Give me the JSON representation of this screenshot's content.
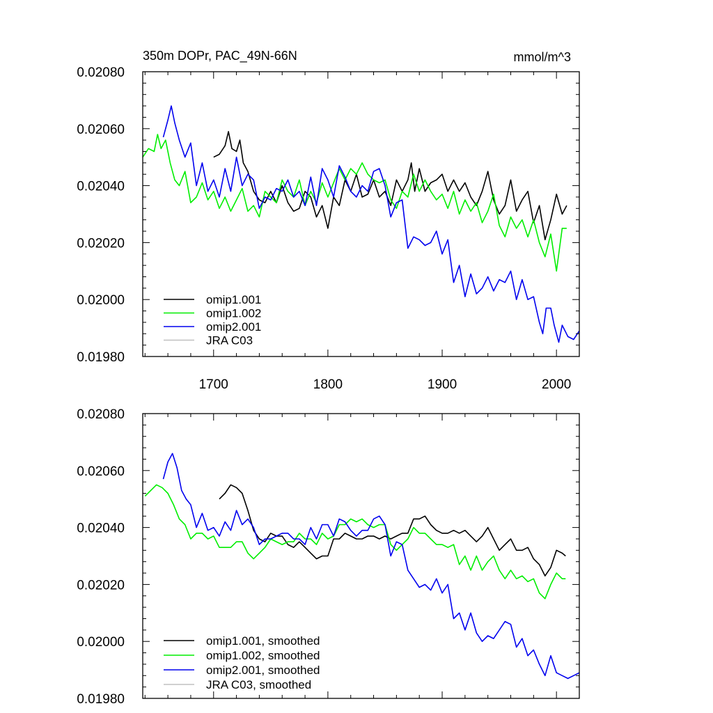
{
  "chart_data": [
    {
      "type": "line",
      "title": "350m DOPr, PAC_49N-66N",
      "units": "mmol/m^3",
      "xlabel": "",
      "ylabel": "",
      "xlim": [
        1638,
        2020
      ],
      "ylim": [
        0.0198,
        0.0208
      ],
      "xticks": [
        "1700",
        "1800",
        "1900",
        "2000"
      ],
      "yticks": [
        "0.01980",
        "0.02000",
        "0.02020",
        "0.02040",
        "0.02060",
        "0.02080"
      ],
      "legend": "bottom-left",
      "series": [
        {
          "name": "omip1.001",
          "color": "#000000",
          "x": [
            1700,
            1705,
            1710,
            1713,
            1716,
            1720,
            1723,
            1726,
            1730,
            1735,
            1740,
            1745,
            1750,
            1755,
            1760,
            1765,
            1770,
            1775,
            1780,
            1785,
            1790,
            1795,
            1800,
            1805,
            1810,
            1815,
            1820,
            1825,
            1830,
            1835,
            1840,
            1845,
            1850,
            1855,
            1860,
            1865,
            1870,
            1873,
            1876,
            1880,
            1885,
            1890,
            1895,
            1900,
            1905,
            1910,
            1915,
            1920,
            1925,
            1930,
            1935,
            1940,
            1945,
            1950,
            1955,
            1960,
            1965,
            1970,
            1975,
            1980,
            1985,
            1990,
            1995,
            2000,
            2005,
            2009
          ],
          "values": [
            0.0205,
            0.02051,
            0.02054,
            0.02059,
            0.02053,
            0.02052,
            0.02056,
            0.02048,
            0.02045,
            0.02038,
            0.02035,
            0.02034,
            0.02038,
            0.02034,
            0.0204,
            0.02034,
            0.02031,
            0.02032,
            0.02038,
            0.02036,
            0.02029,
            0.02033,
            0.02025,
            0.02036,
            0.02033,
            0.02042,
            0.02038,
            0.02044,
            0.02036,
            0.02037,
            0.02042,
            0.02036,
            0.02038,
            0.02033,
            0.02042,
            0.02038,
            0.02042,
            0.02048,
            0.02038,
            0.02046,
            0.02038,
            0.02041,
            0.02042,
            0.02044,
            0.02038,
            0.02042,
            0.02038,
            0.02041,
            0.02036,
            0.02033,
            0.02038,
            0.02045,
            0.02035,
            0.0203,
            0.02033,
            0.02042,
            0.02031,
            0.02035,
            0.02038,
            0.02027,
            0.02033,
            0.02021,
            0.02028,
            0.02037,
            0.0203,
            0.02033
          ]
        },
        {
          "name": "omip1.002",
          "color": "#00ee00",
          "x": [
            1638,
            1643,
            1648,
            1651,
            1654,
            1658,
            1662,
            1666,
            1670,
            1675,
            1680,
            1685,
            1690,
            1695,
            1700,
            1705,
            1710,
            1715,
            1720,
            1725,
            1730,
            1735,
            1740,
            1745,
            1750,
            1755,
            1760,
            1765,
            1770,
            1775,
            1780,
            1785,
            1790,
            1795,
            1800,
            1805,
            1810,
            1815,
            1820,
            1825,
            1830,
            1835,
            1840,
            1845,
            1850,
            1855,
            1860,
            1865,
            1870,
            1875,
            1880,
            1885,
            1890,
            1895,
            1900,
            1905,
            1910,
            1915,
            1920,
            1925,
            1930,
            1935,
            1940,
            1945,
            1950,
            1955,
            1960,
            1965,
            1970,
            1975,
            1980,
            1985,
            1990,
            1995,
            2000,
            2005,
            2009
          ],
          "values": [
            0.0205,
            0.02053,
            0.02052,
            0.02058,
            0.02053,
            0.02056,
            0.02048,
            0.02042,
            0.0204,
            0.02045,
            0.02034,
            0.02036,
            0.02041,
            0.02035,
            0.02038,
            0.02032,
            0.02036,
            0.02031,
            0.02035,
            0.02039,
            0.02031,
            0.02033,
            0.02029,
            0.02038,
            0.02036,
            0.02034,
            0.02042,
            0.02038,
            0.02036,
            0.02042,
            0.02033,
            0.02038,
            0.02034,
            0.02041,
            0.02036,
            0.02041,
            0.02046,
            0.02042,
            0.02046,
            0.02044,
            0.02048,
            0.02044,
            0.02042,
            0.02041,
            0.02042,
            0.02035,
            0.02032,
            0.02038,
            0.02036,
            0.02044,
            0.02038,
            0.02042,
            0.02038,
            0.02035,
            0.02037,
            0.02032,
            0.02038,
            0.0203,
            0.02035,
            0.02031,
            0.02034,
            0.02027,
            0.02031,
            0.02037,
            0.02026,
            0.02022,
            0.02029,
            0.02025,
            0.02028,
            0.02022,
            0.02028,
            0.0202,
            0.02015,
            0.02023,
            0.0201,
            0.02025,
            0.02025
          ]
        },
        {
          "name": "omip2.001",
          "color": "#0000ee",
          "x": [
            1656,
            1660,
            1663,
            1666,
            1670,
            1675,
            1680,
            1685,
            1690,
            1695,
            1700,
            1705,
            1710,
            1715,
            1720,
            1725,
            1730,
            1735,
            1740,
            1745,
            1750,
            1755,
            1760,
            1765,
            1770,
            1775,
            1780,
            1785,
            1790,
            1795,
            1800,
            1805,
            1810,
            1815,
            1820,
            1825,
            1830,
            1835,
            1840,
            1845,
            1850,
            1855,
            1860,
            1865,
            1870,
            1875,
            1880,
            1885,
            1890,
            1895,
            1900,
            1905,
            1910,
            1915,
            1920,
            1925,
            1930,
            1935,
            1940,
            1945,
            1950,
            1955,
            1960,
            1965,
            1970,
            1975,
            1980,
            1985,
            1988,
            1991,
            1995,
            1998,
            2002,
            2005,
            2010,
            2015,
            2020
          ],
          "values": [
            0.02057,
            0.02063,
            0.02068,
            0.02062,
            0.02056,
            0.0205,
            0.02055,
            0.0204,
            0.02048,
            0.02038,
            0.02042,
            0.02036,
            0.02046,
            0.02038,
            0.0205,
            0.0204,
            0.02044,
            0.02042,
            0.02032,
            0.02036,
            0.02035,
            0.02039,
            0.02038,
            0.02042,
            0.02036,
            0.02038,
            0.02033,
            0.02043,
            0.02033,
            0.02046,
            0.02042,
            0.02036,
            0.02047,
            0.02043,
            0.02038,
            0.02036,
            0.0204,
            0.02038,
            0.02045,
            0.02046,
            0.0204,
            0.02029,
            0.02034,
            0.02035,
            0.02018,
            0.02022,
            0.02021,
            0.02019,
            0.0202,
            0.02024,
            0.02016,
            0.02021,
            0.02006,
            0.02012,
            0.02001,
            0.02009,
            0.02002,
            0.02004,
            0.02008,
            0.02003,
            0.02007,
            0.02006,
            0.0201,
            0.02,
            0.02007,
            0.02,
            0.02001,
            0.01992,
            0.01988,
            0.01997,
            0.01997,
            0.01991,
            0.01985,
            0.01991,
            0.01987,
            0.01986,
            0.01989
          ]
        },
        {
          "name": "JRA C03",
          "color": "#c0c0c0",
          "x": [],
          "values": []
        }
      ]
    },
    {
      "type": "line",
      "title": "",
      "xlabel": "",
      "ylabel": "",
      "xlim": [
        1638,
        2020
      ],
      "ylim": [
        0.0198,
        0.0208
      ],
      "yticks": [
        "0.01980",
        "0.02000",
        "0.02020",
        "0.02040",
        "0.02060",
        "0.02080"
      ],
      "legend": "bottom-left",
      "series": [
        {
          "name": "omip1.001, smoothed",
          "color": "#000000",
          "x": [
            1705,
            1710,
            1715,
            1720,
            1725,
            1730,
            1735,
            1740,
            1745,
            1750,
            1755,
            1760,
            1765,
            1770,
            1775,
            1780,
            1785,
            1790,
            1795,
            1800,
            1805,
            1810,
            1815,
            1820,
            1825,
            1830,
            1835,
            1840,
            1845,
            1850,
            1855,
            1860,
            1865,
            1870,
            1875,
            1880,
            1885,
            1890,
            1895,
            1900,
            1905,
            1910,
            1915,
            1920,
            1925,
            1930,
            1935,
            1940,
            1945,
            1950,
            1955,
            1960,
            1965,
            1970,
            1975,
            1980,
            1985,
            1990,
            1995,
            2000,
            2005,
            2008
          ],
          "values": [
            0.0205,
            0.02052,
            0.02055,
            0.02054,
            0.02052,
            0.02046,
            0.02039,
            0.02036,
            0.02035,
            0.02038,
            0.02037,
            0.02037,
            0.02034,
            0.02033,
            0.02035,
            0.02033,
            0.02031,
            0.02029,
            0.0203,
            0.0203,
            0.02036,
            0.02036,
            0.02038,
            0.02037,
            0.02036,
            0.02036,
            0.02037,
            0.02037,
            0.02036,
            0.02037,
            0.02036,
            0.02037,
            0.02038,
            0.02038,
            0.02043,
            0.02043,
            0.02044,
            0.02041,
            0.02039,
            0.02038,
            0.02038,
            0.02039,
            0.02038,
            0.02039,
            0.02037,
            0.02035,
            0.02037,
            0.0204,
            0.02036,
            0.02032,
            0.02034,
            0.02036,
            0.02032,
            0.02032,
            0.02033,
            0.02029,
            0.02027,
            0.02023,
            0.02026,
            0.02032,
            0.02031,
            0.0203
          ]
        },
        {
          "name": "omip1.002, smoothed",
          "color": "#00ee00",
          "x": [
            1640,
            1645,
            1650,
            1655,
            1660,
            1665,
            1670,
            1675,
            1680,
            1685,
            1690,
            1695,
            1700,
            1705,
            1710,
            1715,
            1720,
            1725,
            1730,
            1735,
            1740,
            1745,
            1750,
            1755,
            1760,
            1765,
            1770,
            1775,
            1780,
            1785,
            1790,
            1795,
            1800,
            1805,
            1810,
            1815,
            1820,
            1825,
            1830,
            1835,
            1840,
            1845,
            1850,
            1855,
            1860,
            1865,
            1870,
            1875,
            1880,
            1885,
            1890,
            1895,
            1900,
            1905,
            1910,
            1915,
            1920,
            1925,
            1930,
            1935,
            1940,
            1945,
            1950,
            1955,
            1960,
            1965,
            1970,
            1975,
            1980,
            1985,
            1990,
            1995,
            2000,
            2005,
            2008
          ],
          "values": [
            0.02051,
            0.02053,
            0.02055,
            0.02054,
            0.02052,
            0.02048,
            0.02043,
            0.02041,
            0.02036,
            0.02038,
            0.02038,
            0.02036,
            0.02037,
            0.02033,
            0.02033,
            0.02033,
            0.02035,
            0.02035,
            0.02031,
            0.02029,
            0.02031,
            0.02033,
            0.02036,
            0.02035,
            0.02034,
            0.02035,
            0.02035,
            0.02038,
            0.02036,
            0.02036,
            0.02034,
            0.02038,
            0.02036,
            0.02037,
            0.02041,
            0.02041,
            0.02043,
            0.02042,
            0.02043,
            0.02041,
            0.0204,
            0.02041,
            0.02041,
            0.02034,
            0.02032,
            0.02034,
            0.02036,
            0.0204,
            0.02038,
            0.02038,
            0.02036,
            0.02034,
            0.02034,
            0.02033,
            0.02034,
            0.02027,
            0.0203,
            0.02025,
            0.0203,
            0.02025,
            0.02028,
            0.0203,
            0.02025,
            0.02022,
            0.02025,
            0.02022,
            0.02023,
            0.02021,
            0.02022,
            0.02017,
            0.02015,
            0.0202,
            0.02024,
            0.02022,
            0.02022
          ]
        },
        {
          "name": "omip2.001, smoothed",
          "color": "#0000ee",
          "x": [
            1656,
            1660,
            1664,
            1668,
            1672,
            1676,
            1680,
            1685,
            1690,
            1695,
            1700,
            1705,
            1710,
            1715,
            1720,
            1725,
            1730,
            1735,
            1740,
            1745,
            1750,
            1755,
            1760,
            1765,
            1770,
            1775,
            1780,
            1785,
            1790,
            1795,
            1800,
            1805,
            1810,
            1815,
            1820,
            1825,
            1830,
            1835,
            1840,
            1845,
            1850,
            1855,
            1860,
            1865,
            1870,
            1875,
            1880,
            1885,
            1890,
            1895,
            1900,
            1905,
            1910,
            1915,
            1920,
            1925,
            1930,
            1935,
            1940,
            1945,
            1950,
            1955,
            1960,
            1965,
            1970,
            1975,
            1980,
            1985,
            1990,
            1995,
            2000,
            2005,
            2010,
            2015,
            2020
          ],
          "values": [
            0.02057,
            0.02063,
            0.02066,
            0.02061,
            0.02053,
            0.0205,
            0.02048,
            0.0204,
            0.02045,
            0.02039,
            0.0204,
            0.02037,
            0.02042,
            0.02039,
            0.02046,
            0.02041,
            0.02043,
            0.0204,
            0.02034,
            0.02036,
            0.02036,
            0.02037,
            0.02038,
            0.02038,
            0.02036,
            0.02036,
            0.02034,
            0.0204,
            0.02036,
            0.02041,
            0.02041,
            0.02037,
            0.02043,
            0.02042,
            0.02039,
            0.02037,
            0.02039,
            0.02039,
            0.02043,
            0.02044,
            0.02041,
            0.0203,
            0.02035,
            0.02034,
            0.02025,
            0.02022,
            0.02019,
            0.0202,
            0.02018,
            0.02022,
            0.02017,
            0.0202,
            0.02008,
            0.0201,
            0.02004,
            0.0201,
            0.02003,
            0.02,
            0.02002,
            0.02001,
            0.02004,
            0.02007,
            0.02006,
            0.01998,
            0.02001,
            0.01995,
            0.01997,
            0.01992,
            0.01988,
            0.01995,
            0.01989,
            0.01988,
            0.01987,
            0.01988,
            0.01989
          ]
        },
        {
          "name": "JRA C03, smoothed",
          "color": "#c0c0c0",
          "x": [],
          "values": []
        }
      ]
    }
  ]
}
